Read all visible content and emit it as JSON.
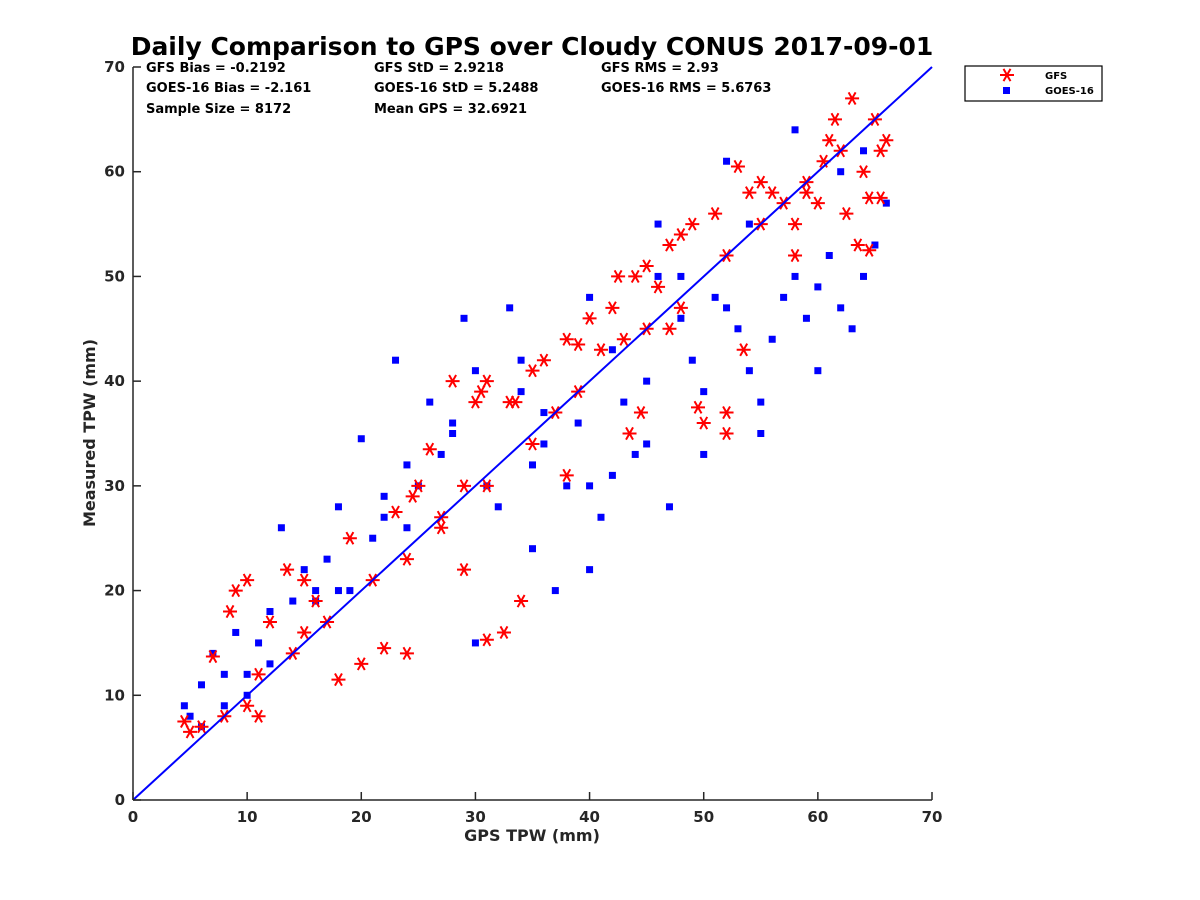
{
  "chart_data": {
    "type": "scatter",
    "title": "Daily Comparison to GPS over Cloudy CONUS 2017-09-01",
    "xlabel": "GPS TPW (mm)",
    "ylabel": "Measured TPW (mm)",
    "xlim": [
      0,
      70
    ],
    "ylim": [
      0,
      70
    ],
    "xticks": [
      0,
      10,
      20,
      30,
      40,
      50,
      60,
      70
    ],
    "yticks": [
      0,
      10,
      20,
      30,
      40,
      50,
      60,
      70
    ],
    "grid": false,
    "legend_position": "outside-top-right",
    "reference_line": {
      "name": "1:1 line",
      "x": [
        0,
        70
      ],
      "y": [
        0,
        70
      ],
      "color": "#0000ff"
    },
    "stats": [
      {
        "text": "GFS Bias = -0.2192"
      },
      {
        "text": "GFS StD = 2.9218"
      },
      {
        "text": "GFS RMS = 2.93"
      },
      {
        "text": "GOES-16 Bias = -2.161"
      },
      {
        "text": "GOES-16 StD = 5.2488"
      },
      {
        "text": "GOES-16 RMS = 5.6763"
      },
      {
        "text": "Sample Size = 8172"
      },
      {
        "text": "Mean GPS = 32.6921"
      }
    ],
    "series": [
      {
        "name": "GFS",
        "marker": "asterisk",
        "color": "#ff0000",
        "points": [
          [
            4.5,
            7.5
          ],
          [
            5,
            6.5
          ],
          [
            6,
            7
          ],
          [
            7,
            13.7
          ],
          [
            8.5,
            18
          ],
          [
            9,
            20
          ],
          [
            10,
            21
          ],
          [
            11,
            8
          ],
          [
            12,
            17
          ],
          [
            13.5,
            22
          ],
          [
            15,
            21
          ],
          [
            16,
            19
          ],
          [
            18,
            11.5
          ],
          [
            19,
            25
          ],
          [
            20,
            13
          ],
          [
            22,
            14.5
          ],
          [
            23,
            27.5
          ],
          [
            24,
            14
          ],
          [
            24.5,
            29
          ],
          [
            25,
            30
          ],
          [
            26,
            33.5
          ],
          [
            27,
            26
          ],
          [
            28,
            40
          ],
          [
            29,
            22
          ],
          [
            30,
            38
          ],
          [
            30.5,
            39
          ],
          [
            31,
            40
          ],
          [
            31,
            15.3
          ],
          [
            32.5,
            16
          ],
          [
            33,
            38
          ],
          [
            33.5,
            38
          ],
          [
            34,
            19
          ],
          [
            35,
            41
          ],
          [
            36,
            42
          ],
          [
            38,
            44
          ],
          [
            38,
            31
          ],
          [
            39,
            43.5
          ],
          [
            40,
            46
          ],
          [
            41,
            43
          ],
          [
            42,
            47
          ],
          [
            42.5,
            50
          ],
          [
            43,
            44
          ],
          [
            43.5,
            35
          ],
          [
            44,
            50
          ],
          [
            44.5,
            37
          ],
          [
            45,
            51
          ],
          [
            46,
            49
          ],
          [
            47,
            53
          ],
          [
            48,
            54
          ],
          [
            49,
            55
          ],
          [
            49.5,
            37.5
          ],
          [
            50,
            36
          ],
          [
            51,
            56
          ],
          [
            52,
            37
          ],
          [
            52,
            35
          ],
          [
            53,
            60.5
          ],
          [
            53.5,
            43
          ],
          [
            54,
            58
          ],
          [
            55,
            59
          ],
          [
            56,
            58
          ],
          [
            57,
            57
          ],
          [
            58,
            55
          ],
          [
            58,
            52
          ],
          [
            59,
            59
          ],
          [
            60,
            57
          ],
          [
            60.5,
            61
          ],
          [
            61,
            63
          ],
          [
            61.5,
            65
          ],
          [
            62,
            62
          ],
          [
            62.5,
            56
          ],
          [
            63,
            67
          ],
          [
            63.5,
            53
          ],
          [
            64,
            60
          ],
          [
            64.5,
            57.5
          ],
          [
            64.5,
            52.5
          ],
          [
            65,
            65
          ],
          [
            65.5,
            62
          ],
          [
            65.5,
            57.5
          ],
          [
            66,
            63
          ],
          [
            48,
            47
          ],
          [
            45,
            45
          ],
          [
            37,
            37
          ],
          [
            35,
            34
          ],
          [
            29,
            30
          ],
          [
            27,
            27
          ],
          [
            21,
            21
          ],
          [
            17,
            17
          ],
          [
            14,
            14
          ],
          [
            11,
            12
          ],
          [
            39,
            39
          ],
          [
            47,
            45
          ],
          [
            55,
            55
          ],
          [
            59,
            58
          ],
          [
            31,
            30
          ],
          [
            24,
            23
          ],
          [
            15,
            16
          ],
          [
            8,
            8
          ],
          [
            10,
            9
          ],
          [
            52,
            52
          ]
        ]
      },
      {
        "name": "GOES-16",
        "marker": "square",
        "color": "#0000ff",
        "points": [
          [
            4.5,
            9
          ],
          [
            5,
            8
          ],
          [
            6,
            11
          ],
          [
            7,
            14
          ],
          [
            8,
            12
          ],
          [
            9,
            16
          ],
          [
            10,
            10
          ],
          [
            11,
            15
          ],
          [
            12,
            18
          ],
          [
            13,
            26
          ],
          [
            14,
            19
          ],
          [
            15,
            22
          ],
          [
            16,
            20
          ],
          [
            17,
            23
          ],
          [
            18,
            28
          ],
          [
            19,
            20
          ],
          [
            20,
            34.5
          ],
          [
            21,
            25
          ],
          [
            22,
            29
          ],
          [
            23,
            42
          ],
          [
            24,
            32
          ],
          [
            25,
            30
          ],
          [
            26,
            38
          ],
          [
            27,
            33
          ],
          [
            28,
            36
          ],
          [
            29,
            46
          ],
          [
            30,
            41
          ],
          [
            31,
            30
          ],
          [
            32,
            28
          ],
          [
            33,
            47
          ],
          [
            34,
            39
          ],
          [
            35,
            32
          ],
          [
            36,
            34
          ],
          [
            37,
            20
          ],
          [
            38,
            30
          ],
          [
            39,
            36
          ],
          [
            40,
            22
          ],
          [
            41,
            27
          ],
          [
            42,
            31
          ],
          [
            43,
            38
          ],
          [
            44,
            33
          ],
          [
            45,
            40
          ],
          [
            46,
            50
          ],
          [
            47,
            28
          ],
          [
            48,
            46
          ],
          [
            49,
            42
          ],
          [
            50,
            39
          ],
          [
            51,
            48
          ],
          [
            52,
            47
          ],
          [
            53,
            45
          ],
          [
            54,
            41
          ],
          [
            55,
            35
          ],
          [
            56,
            44
          ],
          [
            57,
            48
          ],
          [
            58,
            50
          ],
          [
            59,
            46
          ],
          [
            60,
            49
          ],
          [
            61,
            52
          ],
          [
            62,
            47
          ],
          [
            63,
            45
          ],
          [
            64,
            50
          ],
          [
            65,
            53
          ],
          [
            66,
            57
          ],
          [
            30,
            15
          ],
          [
            35,
            24
          ],
          [
            40,
            30
          ],
          [
            45,
            34
          ],
          [
            50,
            33
          ],
          [
            55,
            38
          ],
          [
            60,
            41
          ],
          [
            62,
            60
          ],
          [
            64,
            62
          ],
          [
            58,
            64
          ],
          [
            52,
            61
          ],
          [
            46,
            55
          ],
          [
            40,
            48
          ],
          [
            34,
            42
          ],
          [
            28,
            35
          ],
          [
            22,
            27
          ],
          [
            16,
            19
          ],
          [
            10,
            12
          ],
          [
            6,
            7
          ],
          [
            8,
            9
          ],
          [
            12,
            13
          ],
          [
            18,
            20
          ],
          [
            24,
            26
          ],
          [
            36,
            37
          ],
          [
            42,
            43
          ],
          [
            48,
            50
          ],
          [
            54,
            55
          ]
        ]
      }
    ]
  }
}
